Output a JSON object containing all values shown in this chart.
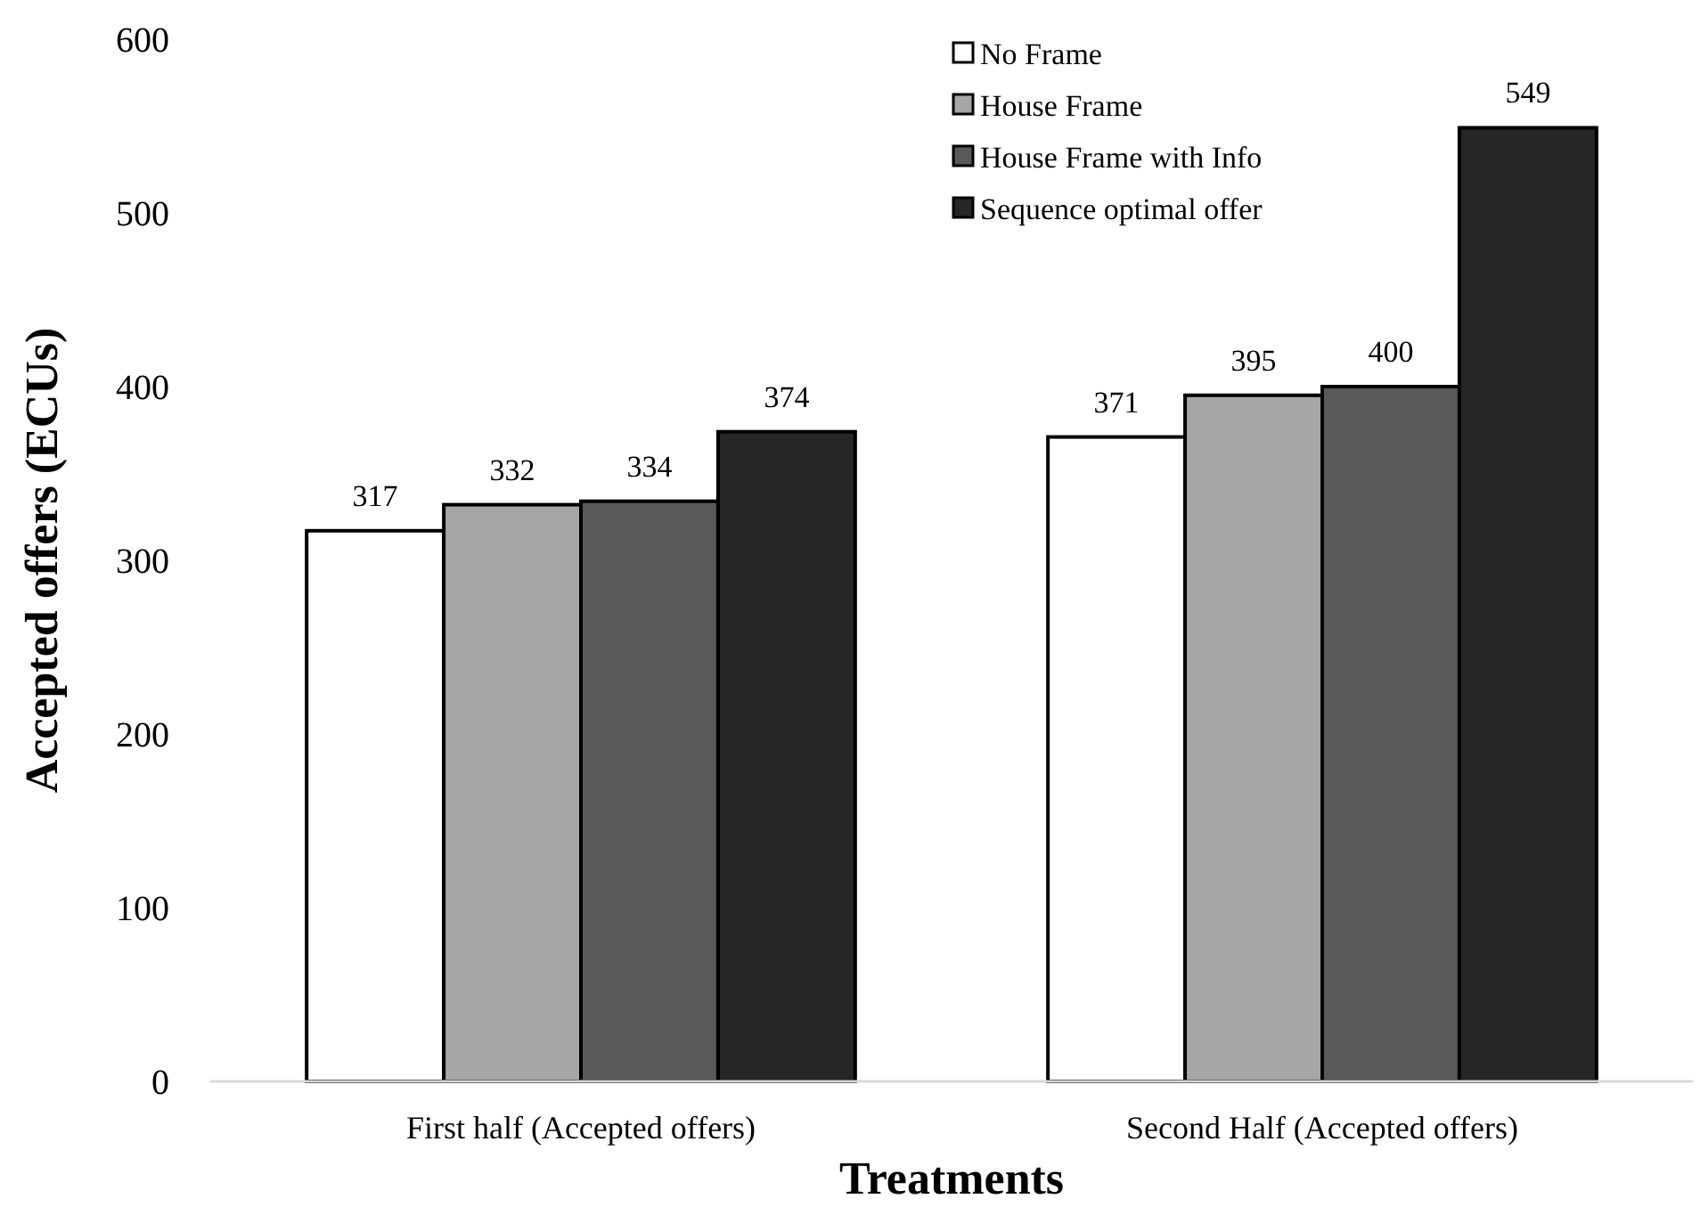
{
  "chart_data": {
    "type": "bar",
    "xlabel": "Treatments",
    "ylabel": "Accepted offers (ECUs)",
    "categories": [
      "First half (Accepted offers)",
      "Second Half (Accepted offers)"
    ],
    "series": [
      {
        "name": "No Frame",
        "color": "#ffffff",
        "values": [
          317,
          371
        ]
      },
      {
        "name": "House Frame",
        "color": "#a6a6a6",
        "values": [
          332,
          395
        ]
      },
      {
        "name": "House Frame with Info",
        "color": "#595959",
        "values": [
          334,
          400
        ]
      },
      {
        "name": "Sequence optimal offer",
        "color": "#262626",
        "values": [
          374,
          549
        ]
      }
    ],
    "ylim": [
      0,
      600
    ],
    "yticks": [
      0,
      100,
      200,
      300,
      400,
      500,
      600
    ],
    "grid": false,
    "legend": "top right",
    "data_labels": true
  }
}
